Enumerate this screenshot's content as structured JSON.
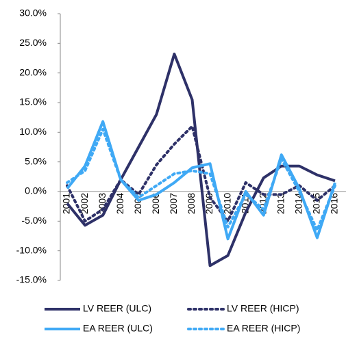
{
  "chart_data": {
    "type": "line",
    "categories": [
      "2001",
      "2002",
      "2003",
      "2004",
      "2005",
      "2006",
      "2007",
      "2008",
      "2009",
      "2010",
      "2011",
      "2012",
      "2013",
      "2014",
      "2015",
      "2016"
    ],
    "series": [
      {
        "name": "LV REER (ULC)",
        "color": "#2e3168",
        "dash": "solid",
        "values": [
          -2.0,
          -5.7,
          -4.0,
          2.0,
          7.5,
          13.0,
          23.2,
          15.5,
          -12.5,
          -10.8,
          -3.5,
          2.3,
          4.3,
          4.3,
          2.8,
          1.8
        ]
      },
      {
        "name": "LV REER (HICP)",
        "color": "#2e3168",
        "dash": "dotted",
        "values": [
          1.0,
          -5.0,
          -3.0,
          2.0,
          -0.5,
          4.5,
          8.0,
          11.0,
          -1.0,
          -5.0,
          1.5,
          -0.5,
          -0.5,
          1.0,
          -1.5,
          1.0
        ]
      },
      {
        "name": "EA REER (ULC)",
        "color": "#3fa9f5",
        "dash": "solid",
        "values": [
          0.5,
          4.3,
          11.8,
          2.0,
          -1.5,
          -0.5,
          1.5,
          4.0,
          4.7,
          -8.0,
          0.0,
          -4.0,
          6.2,
          0.5,
          -7.8,
          1.5
        ]
      },
      {
        "name": "EA REER (HICP)",
        "color": "#3fa9f5",
        "dash": "dotted",
        "values": [
          1.5,
          3.5,
          10.5,
          2.0,
          -1.0,
          1.0,
          3.0,
          3.5,
          3.0,
          -6.0,
          -0.5,
          -3.0,
          5.5,
          0.0,
          -6.5,
          1.0
        ]
      }
    ],
    "ylim": [
      -15,
      30
    ],
    "yticks": [
      {
        "value": -15,
        "label": "-15.0%"
      },
      {
        "value": -10,
        "label": "-10.0%"
      },
      {
        "value": -5,
        "label": "-5.0%"
      },
      {
        "value": 0,
        "label": "0.0%"
      },
      {
        "value": 5,
        "label": "5.0%"
      },
      {
        "value": 10,
        "label": "10.0%"
      },
      {
        "value": 15,
        "label": "15.0%"
      },
      {
        "value": 20,
        "label": "20.0%"
      },
      {
        "value": 25,
        "label": "25.0%"
      },
      {
        "value": 30,
        "label": "30.0%"
      }
    ],
    "grid": false,
    "legend": "bottom"
  }
}
